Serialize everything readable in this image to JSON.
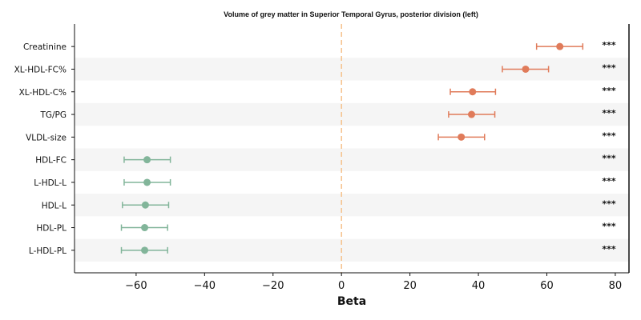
{
  "chart_data": {
    "type": "forest",
    "title": "Volume of grey matter in Superior Temporal Gyrus, posterior division (left)",
    "xlabel": "Beta",
    "ylabel": "",
    "xlim": [
      -78,
      84
    ],
    "xticks": [
      -60,
      -40,
      -20,
      0,
      20,
      40,
      60,
      80
    ],
    "xtick_labels": [
      "−60",
      "−40",
      "−20",
      "0",
      "20",
      "40",
      "60",
      "80"
    ],
    "reference_line": 0,
    "grid": false,
    "row_banding": true,
    "colors": {
      "positive": "#e07b5a",
      "negative": "#82b59a",
      "reference_line": "#f5c08a",
      "band": "#f5f5f5"
    },
    "rows": [
      {
        "label": "Creatinine",
        "beta": 63.8,
        "ci_low": 57.0,
        "ci_high": 70.5,
        "sig": "***"
      },
      {
        "label": "XL-HDL-FC%",
        "beta": 53.8,
        "ci_low": 47.0,
        "ci_high": 60.5,
        "sig": "***"
      },
      {
        "label": "XL-HDL-C%",
        "beta": 38.3,
        "ci_low": 31.8,
        "ci_high": 45.0,
        "sig": "***"
      },
      {
        "label": "TG/PG",
        "beta": 38.0,
        "ci_low": 31.3,
        "ci_high": 44.8,
        "sig": "***"
      },
      {
        "label": "VLDL-size",
        "beta": 35.0,
        "ci_low": 28.3,
        "ci_high": 41.8,
        "sig": "***"
      },
      {
        "label": "HDL-FC",
        "beta": -56.8,
        "ci_low": -63.5,
        "ci_high": -50.0,
        "sig": "***"
      },
      {
        "label": "L-HDL-L",
        "beta": -56.8,
        "ci_low": -63.5,
        "ci_high": -50.0,
        "sig": "***"
      },
      {
        "label": "HDL-L",
        "beta": -57.3,
        "ci_low": -64.0,
        "ci_high": -50.5,
        "sig": "***"
      },
      {
        "label": "HDL-PL",
        "beta": -57.5,
        "ci_low": -64.3,
        "ci_high": -50.8,
        "sig": "***"
      },
      {
        "label": "L-HDL-PL",
        "beta": -57.5,
        "ci_low": -64.3,
        "ci_high": -50.8,
        "sig": "***"
      }
    ]
  }
}
